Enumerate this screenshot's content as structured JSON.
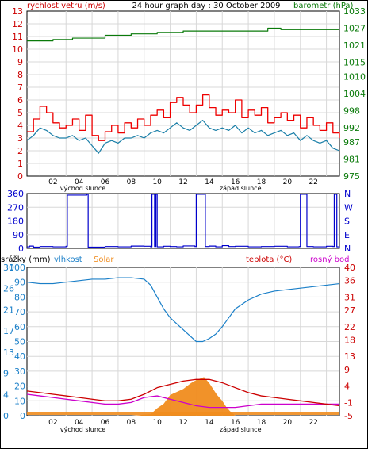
{
  "chart_data": [
    {
      "type": "line",
      "title": "24 hour graph day : 30 October 2009",
      "left_label": "rychlost vetru (m/s)",
      "right_label": "barometr (hPa)",
      "left_ticks": [
        "0",
        "1",
        "2",
        "3",
        "4",
        "5",
        "6",
        "7",
        "8",
        "9",
        "10",
        "11",
        "12",
        "13"
      ],
      "right_ticks": [
        "975",
        "981",
        "987",
        "992",
        "998",
        "1004",
        "1010",
        "1015",
        "1021",
        "1027",
        "1033"
      ],
      "x_ticks": [
        "02",
        "04",
        "06",
        "08",
        "10",
        "12",
        "14",
        "16",
        "18",
        "20",
        "22"
      ],
      "sunrise_label": "východ slunce",
      "sunset_label": "západ slunce",
      "ylim_left": [
        0,
        13
      ],
      "ylim_right": [
        975,
        1033
      ],
      "grid": true,
      "colors": {
        "gust": "#ee0000",
        "wind": "#1a7fa8",
        "pressure": "#0a7a0a"
      },
      "series": [
        {
          "key": "gust",
          "x": [
            0,
            0.5,
            1,
            1.5,
            2,
            2.5,
            3,
            3.5,
            4,
            4.5,
            5,
            5.5,
            6,
            6.5,
            7,
            7.5,
            8,
            8.5,
            9,
            9.5,
            10,
            10.5,
            11,
            11.5,
            12,
            12.5,
            13,
            13.5,
            14,
            14.5,
            15,
            15.5,
            16,
            16.5,
            17,
            17.5,
            18,
            18.5,
            19,
            19.5,
            20,
            20.5,
            21,
            21.5,
            22,
            22.5,
            23,
            23.5,
            24
          ],
          "values": [
            3.5,
            4.5,
            5.5,
            5.0,
            4.2,
            3.8,
            4.0,
            4.5,
            3.6,
            4.8,
            3.2,
            2.8,
            3.5,
            4.0,
            3.4,
            4.2,
            3.8,
            4.5,
            4.0,
            4.8,
            5.2,
            4.6,
            5.8,
            6.2,
            5.6,
            5.0,
            5.6,
            6.4,
            5.4,
            4.8,
            5.2,
            5.0,
            6.0,
            4.6,
            5.2,
            4.8,
            5.4,
            4.2,
            4.6,
            5.0,
            4.4,
            4.8,
            3.8,
            4.6,
            4.0,
            3.6,
            4.2,
            3.4,
            3.0
          ]
        },
        {
          "key": "wind",
          "x": [
            0,
            0.5,
            1,
            1.5,
            2,
            2.5,
            3,
            3.5,
            4,
            4.5,
            5,
            5.5,
            6,
            6.5,
            7,
            7.5,
            8,
            8.5,
            9,
            9.5,
            10,
            10.5,
            11,
            11.5,
            12,
            12.5,
            13,
            13.5,
            14,
            14.5,
            15,
            15.5,
            16,
            16.5,
            17,
            17.5,
            18,
            18.5,
            19,
            19.5,
            20,
            20.5,
            21,
            21.5,
            22,
            22.5,
            23,
            23.5,
            24
          ],
          "values": [
            2.8,
            3.2,
            3.8,
            3.6,
            3.2,
            3.0,
            3.0,
            3.2,
            2.8,
            3.0,
            2.4,
            1.8,
            2.6,
            2.8,
            2.6,
            3.0,
            3.0,
            3.2,
            3.0,
            3.4,
            3.6,
            3.4,
            3.8,
            4.2,
            3.8,
            3.6,
            4.0,
            4.4,
            3.8,
            3.6,
            3.8,
            3.6,
            4.0,
            3.4,
            3.8,
            3.4,
            3.6,
            3.2,
            3.4,
            3.6,
            3.2,
            3.4,
            2.8,
            3.2,
            2.8,
            2.6,
            2.8,
            2.2,
            2.0
          ]
        },
        {
          "key": "pressure",
          "axis": "right",
          "x": [
            0,
            2,
            3.5,
            6,
            8,
            10,
            12,
            14,
            16,
            18,
            18.5,
            19.5,
            20,
            22,
            24
          ],
          "values": [
            1022.5,
            1023,
            1023.5,
            1024.5,
            1025,
            1025.5,
            1026,
            1026,
            1026,
            1026,
            1027,
            1026.5,
            1026.5,
            1026.5,
            1026.5
          ]
        }
      ]
    },
    {
      "type": "line",
      "left_ticks": [
        "360",
        "270",
        "180",
        "90",
        "0"
      ],
      "right_ticks": [
        "N",
        "W",
        "S",
        "E",
        "N"
      ],
      "ylim": [
        0,
        360
      ],
      "colors": {
        "direction": "#0000cc"
      },
      "series": [
        {
          "key": "direction",
          "x": [
            0,
            0.2,
            0.5,
            1,
            2,
            3.0,
            3.1,
            4.6,
            4.7,
            6,
            7,
            8,
            9,
            9.5,
            9.6,
            9.8,
            9.9,
            10.0,
            10.5,
            11,
            11.5,
            12,
            12.9,
            13.0,
            13.6,
            13.7,
            14,
            14.5,
            15,
            15.5,
            16,
            17,
            18,
            19,
            20,
            20.9,
            21.0,
            21.4,
            21.5,
            22,
            23,
            23.5,
            23.6,
            23.8,
            24
          ],
          "values": [
            10,
            15,
            8,
            12,
            10,
            14,
            350,
            355,
            8,
            12,
            10,
            15,
            14,
            10,
            355,
            12,
            355,
            10,
            14,
            12,
            10,
            16,
            12,
            355,
            355,
            12,
            15,
            10,
            18,
            12,
            14,
            10,
            12,
            14,
            10,
            12,
            355,
            355,
            12,
            10,
            14,
            12,
            355,
            10,
            12
          ]
        }
      ]
    },
    {
      "type": "line",
      "labels": {
        "rain": "srážky (mm)",
        "humidity": "vlhkost",
        "solar": "Solar",
        "temp": "teplota (°C)",
        "dew": "rosný bod"
      },
      "left_outer_ticks": [
        "0",
        "4",
        "9",
        "13",
        "17",
        "21",
        "26",
        "30"
      ],
      "left_inner_ticks": [
        "0",
        "10",
        "20",
        "30",
        "40",
        "50",
        "60",
        "70",
        "80",
        "90",
        "100"
      ],
      "right_ticks": [
        "-5",
        "-1",
        "4",
        "9",
        "13",
        "18",
        "22",
        "27",
        "31",
        "36",
        "40"
      ],
      "x_ticks": [
        "02",
        "04",
        "06",
        "08",
        "10",
        "12",
        "14",
        "16",
        "18",
        "20",
        "22"
      ],
      "sunrise_label": "východ slunce",
      "sunset_label": "západ slunce",
      "ylim_left": [
        0,
        100
      ],
      "ylim_right": [
        -5,
        40
      ],
      "grid": true,
      "colors": {
        "humidity": "#1a7fc8",
        "temp": "#cc0000",
        "dew": "#cc00cc",
        "solar": "#f08c1e",
        "rain": "#1a7fc8"
      },
      "series": [
        {
          "key": "humidity",
          "x": [
            0,
            1,
            2,
            3,
            4,
            5,
            6,
            7,
            8,
            9,
            9.5,
            10,
            10.5,
            11,
            11.5,
            12,
            12.5,
            13,
            13.5,
            14,
            14.5,
            15,
            15.5,
            16,
            17,
            18,
            19,
            20,
            21,
            22,
            23,
            24
          ],
          "values": [
            90,
            89,
            89,
            90,
            91,
            92,
            92,
            93,
            93,
            92,
            88,
            80,
            72,
            66,
            62,
            58,
            54,
            50,
            50,
            52,
            55,
            60,
            66,
            72,
            78,
            82,
            84,
            85,
            86,
            87,
            88,
            89
          ]
        },
        {
          "key": "temp",
          "x": [
            0,
            1,
            2,
            3,
            4,
            5,
            6,
            7,
            8,
            9,
            10,
            11,
            12,
            13,
            14,
            15,
            16,
            17,
            18,
            19,
            20,
            21,
            22,
            23,
            24
          ],
          "values": [
            2.5,
            2.0,
            1.5,
            1.0,
            0.5,
            0,
            -0.5,
            -0.5,
            0,
            1.5,
            3.5,
            4.5,
            5.5,
            6.0,
            6.0,
            5.0,
            3.5,
            2.0,
            1.0,
            0.5,
            0,
            -0.5,
            -1.0,
            -1.5,
            -2.0
          ]
        },
        {
          "key": "dew",
          "x": [
            0,
            1,
            2,
            3,
            4,
            5,
            6,
            7,
            8,
            9,
            10,
            11,
            12,
            13,
            14,
            15,
            16,
            17,
            18,
            19,
            20,
            21,
            22,
            23,
            24
          ],
          "values": [
            1.5,
            1.0,
            0.5,
            0,
            -0.5,
            -1.0,
            -1.5,
            -1.5,
            -1.0,
            0.5,
            1.0,
            0,
            -1.0,
            -2.0,
            -2.5,
            -2.5,
            -2.5,
            -2.0,
            -1.5,
            -1.5,
            -1.5,
            -1.5,
            -1.5,
            -1.5,
            -1.5
          ]
        },
        {
          "key": "solar",
          "x": [
            0,
            8,
            9.5,
            10,
            10.5,
            11,
            11.5,
            12,
            12.3,
            12.6,
            13,
            13.3,
            13.6,
            14,
            14.3,
            14.6,
            15,
            15.3,
            15.6,
            16,
            24
          ],
          "values": [
            0,
            0,
            1,
            5,
            8,
            14,
            16,
            18,
            20,
            22,
            24,
            25,
            26,
            22,
            18,
            14,
            10,
            6,
            3,
            0,
            0
          ]
        },
        {
          "key": "rain",
          "x": [
            0,
            24
          ],
          "values": [
            1.5,
            1.5
          ]
        }
      ]
    }
  ]
}
